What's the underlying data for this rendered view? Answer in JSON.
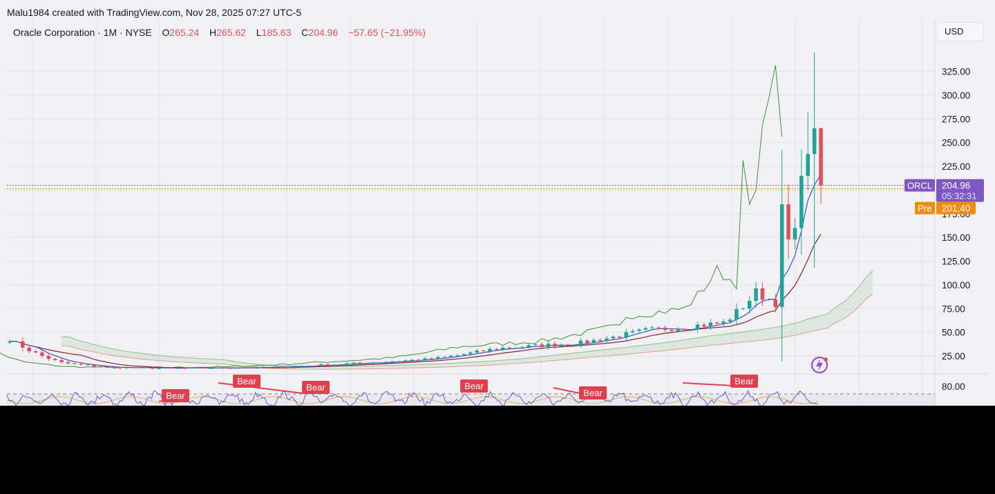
{
  "header": {
    "credit": "Malu1984 created with TradingView.com, Nov 28, 2025 07:27 UTC-5"
  },
  "legend": {
    "symbol": "Oracle Corporation · 1M · NYSE",
    "open_label": "O",
    "open": "265.24",
    "high_label": "H",
    "high": "265.62",
    "low_label": "L",
    "low": "185.63",
    "close_label": "C",
    "close": "204.96",
    "change": "−57.65 (−21.95%)"
  },
  "currency": "USD",
  "price_axis": {
    "ticks": [
      "25.00",
      "50.00",
      "75.00",
      "100.00",
      "125.00",
      "150.00",
      "175.00",
      "200.00",
      "225.00",
      "250.00",
      "275.00",
      "300.00",
      "325.00"
    ],
    "ticker_badge": "ORCL",
    "last_price": "204.96",
    "countdown": "05:32:31",
    "pre_badge": "Pre",
    "pre_price": "201.40"
  },
  "rsi_axis": {
    "tick": "80.00"
  },
  "rsi_signals": [
    "Bear",
    "Bear",
    "Bear",
    "Bear",
    "Bear",
    "Bear"
  ],
  "colors": {
    "background": "#f1f1f3",
    "up": "#22a29a",
    "down": "#e0505a",
    "ma_fast": "#3a4fc9",
    "ma_slow": "#8b1d2c",
    "lagging": "#3f8f3a",
    "cloud_up": "#6aa86b",
    "cloud_down": "#dd8a7c",
    "rsi": "#6a5acd",
    "rsi_ma": "#e0b54a",
    "ticker_badge": "#7e57c2",
    "pre_badge": "#f08c12",
    "bear": "#e0404d"
  },
  "chart_data": [
    {
      "type": "candlestick",
      "title": "Oracle Corporation · 1M · NYSE",
      "ylabel": "USD",
      "ylim": [
        7,
        330
      ],
      "n_candles": 126,
      "series": [
        {
          "name": "ORCL",
          "close_anchors": [
            [
              0,
              43
            ],
            [
              4,
              28
            ],
            [
              8,
              18
            ],
            [
              15,
              13
            ],
            [
              25,
              12
            ],
            [
              40,
              13
            ],
            [
              55,
              18
            ],
            [
              65,
              22
            ],
            [
              75,
              33
            ],
            [
              88,
              39
            ],
            [
              98,
              52
            ],
            [
              110,
              60
            ],
            [
              115,
              92
            ],
            [
              120,
              75
            ],
            [
              123,
              118
            ],
            [
              125,
              205
            ]
          ]
        },
        {
          "anchors_close_last": 204.96,
          "pre_market": 201.4,
          "last_high": 265.62,
          "last_low": 185.63,
          "last_open": 265.24
        }
      ]
    },
    {
      "type": "line",
      "title": "RSI",
      "ylim": [
        0,
        100
      ],
      "reference_lines": [
        70
      ]
    }
  ]
}
